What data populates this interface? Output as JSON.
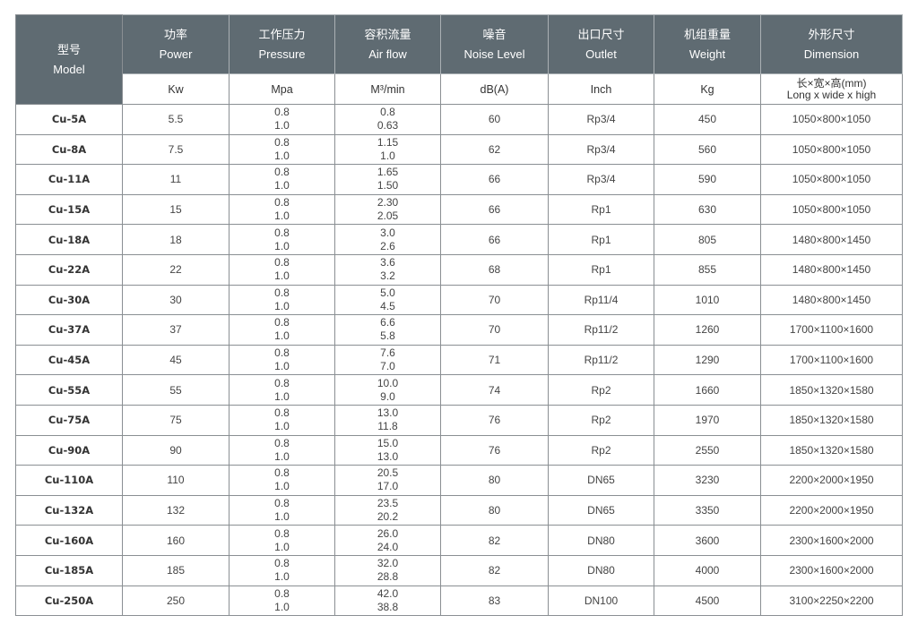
{
  "colors": {
    "header_bg": "#5f6b72",
    "header_text": "#ffffff",
    "grid": "#8a8f93"
  },
  "header": {
    "model": {
      "cn": "型号",
      "en": "Model"
    },
    "columns": [
      {
        "cn": "功率",
        "en": "Power",
        "unit": "Kw"
      },
      {
        "cn": "工作压力",
        "en": "Pressure",
        "unit": "Mpa"
      },
      {
        "cn": "容积流量",
        "en": "Air flow",
        "unit": "M³/min"
      },
      {
        "cn": "噪音",
        "en": "Noise Level",
        "unit": "dB(A)"
      },
      {
        "cn": "出口尺寸",
        "en": "Outlet",
        "unit": "Inch"
      },
      {
        "cn": "机组重量",
        "en": "Weight",
        "unit": "Kg"
      },
      {
        "cn": "外形尺寸",
        "en": "Dimension",
        "unit": "长×宽×高(mm)",
        "unit2": "Long x wide x high"
      }
    ]
  },
  "rows": [
    {
      "model": "Cu-5A",
      "power": "5.5",
      "pressure": [
        "0.8",
        "1.0"
      ],
      "flow": [
        "0.8",
        "0.63"
      ],
      "noise": "60",
      "outlet": "Rp3/4",
      "weight": "450",
      "dimension": "1050×800×1050"
    },
    {
      "model": "Cu-8A",
      "power": "7.5",
      "pressure": [
        "0.8",
        "1.0"
      ],
      "flow": [
        "1.15",
        "1.0"
      ],
      "noise": "62",
      "outlet": "Rp3/4",
      "weight": "560",
      "dimension": "1050×800×1050"
    },
    {
      "model": "Cu-11A",
      "power": "11",
      "pressure": [
        "0.8",
        "1.0"
      ],
      "flow": [
        "1.65",
        "1.50"
      ],
      "noise": "66",
      "outlet": "Rp3/4",
      "weight": "590",
      "dimension": "1050×800×1050"
    },
    {
      "model": "Cu-15A",
      "power": "15",
      "pressure": [
        "0.8",
        "1.0"
      ],
      "flow": [
        "2.30",
        "2.05"
      ],
      "noise": "66",
      "outlet": "Rp1",
      "weight": "630",
      "dimension": "1050×800×1050"
    },
    {
      "model": "Cu-18A",
      "power": "18",
      "pressure": [
        "0.8",
        "1.0"
      ],
      "flow": [
        "3.0",
        "2.6"
      ],
      "noise": "66",
      "outlet": "Rp1",
      "weight": "805",
      "dimension": "1480×800×1450"
    },
    {
      "model": "Cu-22A",
      "power": "22",
      "pressure": [
        "0.8",
        "1.0"
      ],
      "flow": [
        "3.6",
        "3.2"
      ],
      "noise": "68",
      "outlet": "Rp1",
      "weight": "855",
      "dimension": "1480×800×1450"
    },
    {
      "model": "Cu-30A",
      "power": "30",
      "pressure": [
        "0.8",
        "1.0"
      ],
      "flow": [
        "5.0",
        "4.5"
      ],
      "noise": "70",
      "outlet": "Rp11/4",
      "weight": "1010",
      "dimension": "1480×800×1450"
    },
    {
      "model": "Cu-37A",
      "power": "37",
      "pressure": [
        "0.8",
        "1.0"
      ],
      "flow": [
        "6.6",
        "5.8"
      ],
      "noise": "70",
      "outlet": "Rp11/2",
      "weight": "1260",
      "dimension": "1700×1100×1600"
    },
    {
      "model": "Cu-45A",
      "power": "45",
      "pressure": [
        "0.8",
        "1.0"
      ],
      "flow": [
        "7.6",
        "7.0"
      ],
      "noise": "71",
      "outlet": "Rp11/2",
      "weight": "1290",
      "dimension": "1700×1100×1600"
    },
    {
      "model": "Cu-55A",
      "power": "55",
      "pressure": [
        "0.8",
        "1.0"
      ],
      "flow": [
        "10.0",
        "9.0"
      ],
      "noise": "74",
      "outlet": "Rp2",
      "weight": "1660",
      "dimension": "1850×1320×1580"
    },
    {
      "model": "Cu-75A",
      "power": "75",
      "pressure": [
        "0.8",
        "1.0"
      ],
      "flow": [
        "13.0",
        "11.8"
      ],
      "noise": "76",
      "outlet": "Rp2",
      "weight": "1970",
      "dimension": "1850×1320×1580"
    },
    {
      "model": "Cu-90A",
      "power": "90",
      "pressure": [
        "0.8",
        "1.0"
      ],
      "flow": [
        "15.0",
        "13.0"
      ],
      "noise": "76",
      "outlet": "Rp2",
      "weight": "2550",
      "dimension": "1850×1320×1580"
    },
    {
      "model": "Cu-110A",
      "power": "110",
      "pressure": [
        "0.8",
        "1.0"
      ],
      "flow": [
        "20.5",
        "17.0"
      ],
      "noise": "80",
      "outlet": "DN65",
      "weight": "3230",
      "dimension": "2200×2000×1950"
    },
    {
      "model": "Cu-132A",
      "power": "132",
      "pressure": [
        "0.8",
        "1.0"
      ],
      "flow": [
        "23.5",
        "20.2"
      ],
      "noise": "80",
      "outlet": "DN65",
      "weight": "3350",
      "dimension": "2200×2000×1950"
    },
    {
      "model": "Cu-160A",
      "power": "160",
      "pressure": [
        "0.8",
        "1.0"
      ],
      "flow": [
        "26.0",
        "24.0"
      ],
      "noise": "82",
      "outlet": "DN80",
      "weight": "3600",
      "dimension": "2300×1600×2000"
    },
    {
      "model": "Cu-185A",
      "power": "185",
      "pressure": [
        "0.8",
        "1.0"
      ],
      "flow": [
        "32.0",
        "28.8"
      ],
      "noise": "82",
      "outlet": "DN80",
      "weight": "4000",
      "dimension": "2300×1600×2000"
    },
    {
      "model": "Cu-250A",
      "power": "250",
      "pressure": [
        "0.8",
        "1.0"
      ],
      "flow": [
        "42.0",
        "38.8"
      ],
      "noise": "83",
      "outlet": "DN100",
      "weight": "4500",
      "dimension": "3100×2250×2200"
    }
  ]
}
